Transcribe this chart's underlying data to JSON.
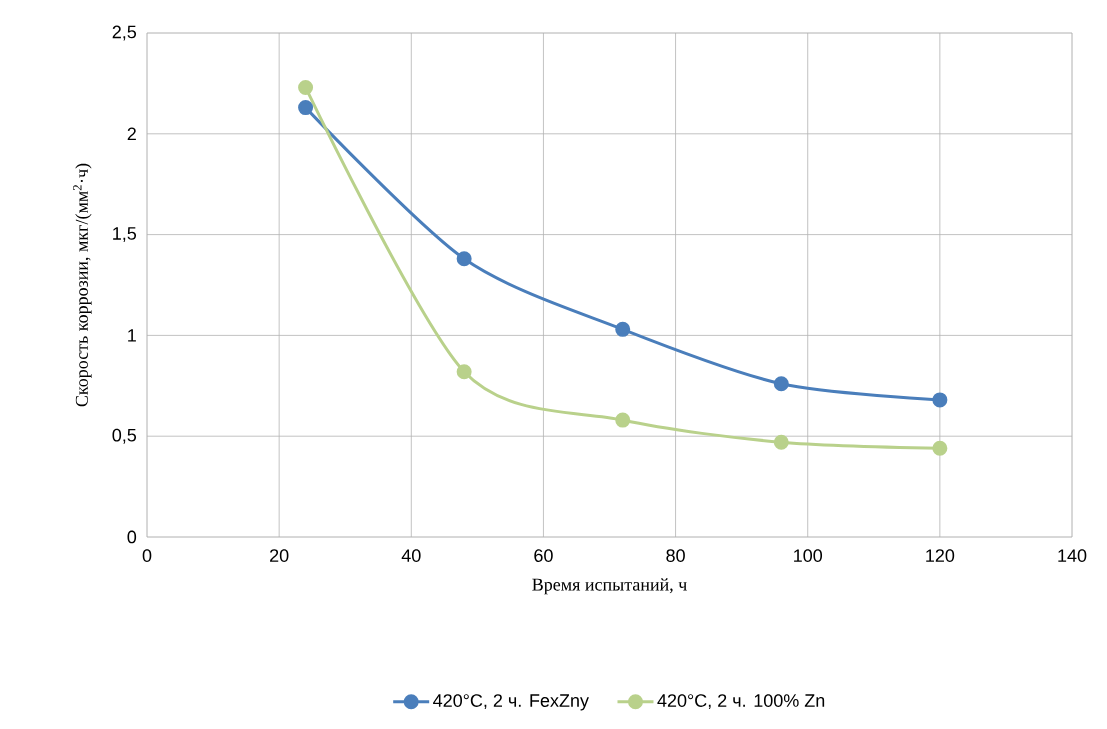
{
  "chart_data": {
    "type": "line",
    "xlabel": "Время испытаний, ч",
    "ylabel": "Скорость коррозии, мкг/(мм$^{2}$·ч)",
    "x": [
      24,
      48,
      72,
      96,
      120
    ],
    "series": [
      {
        "name": "420°C, 2 ч. FexZny",
        "color": "#4a7ebb",
        "values": [
          2.13,
          1.38,
          1.03,
          0.76,
          0.68
        ]
      },
      {
        "name": "420°C, 2 ч.  100% Zn",
        "color": "#b9d18b",
        "values": [
          2.23,
          0.82,
          0.58,
          0.47,
          0.44
        ]
      }
    ],
    "xlim": [
      0,
      140
    ],
    "xticks": [
      0,
      20,
      40,
      60,
      80,
      100,
      120,
      140
    ],
    "ylim": [
      0,
      2.5
    ],
    "yticks": [
      0,
      {
        "value": 0.5,
        "label": "0,5"
      },
      1,
      {
        "value": 1.5,
        "label": "1,5"
      },
      2,
      {
        "value": 2.5,
        "label": "2,5"
      }
    ],
    "grid": true,
    "legend": "bottom",
    "marker": "circle",
    "line_style": "solid"
  }
}
